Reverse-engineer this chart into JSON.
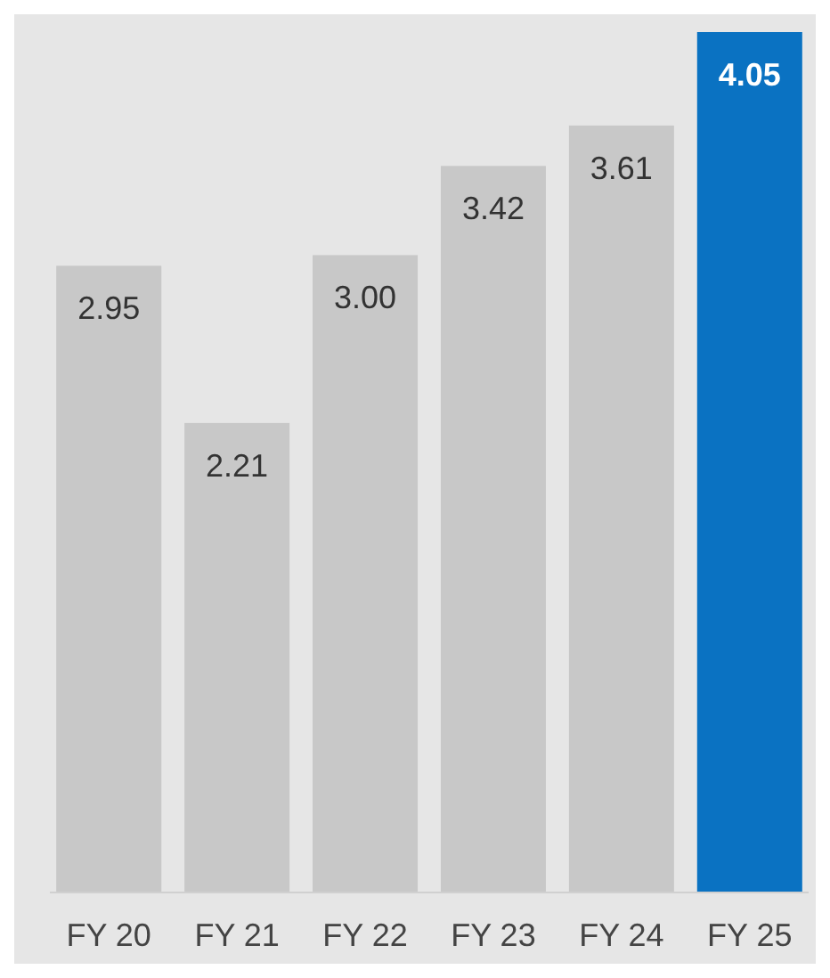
{
  "chart_data": {
    "type": "bar",
    "categories": [
      "FY 20",
      "FY 21",
      "FY 22",
      "FY 23",
      "FY 24",
      "FY 25"
    ],
    "values": [
      2.95,
      2.21,
      3.0,
      3.42,
      3.61,
      4.05
    ],
    "value_labels": [
      "2.95",
      "2.21",
      "3.00",
      "3.42",
      "3.61",
      "4.05"
    ],
    "colors": [
      "#c8c8c8",
      "#c8c8c8",
      "#c8c8c8",
      "#c8c8c8",
      "#c8c8c8",
      "#0a72c2"
    ]
  }
}
